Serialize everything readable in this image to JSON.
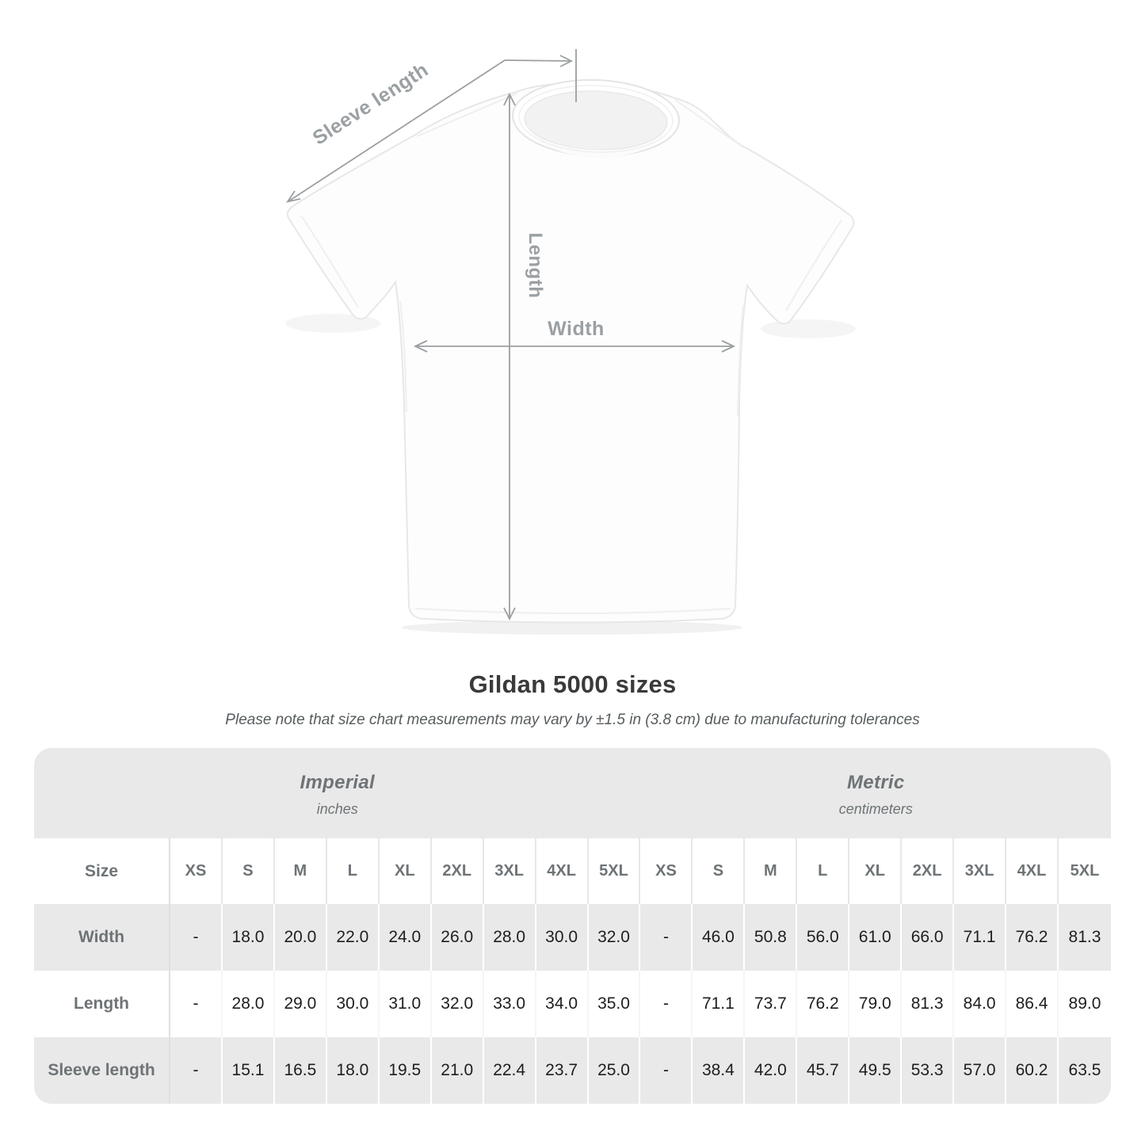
{
  "diagram": {
    "labels": {
      "sleeve_length": "Sleeve length",
      "length": "Length",
      "width": "Width"
    }
  },
  "title": "Gildan 5000 sizes",
  "note": "Please note that size chart measurements may vary by ±1.5 in (3.8 cm) due to manufacturing tolerances",
  "table": {
    "size_header": "Size",
    "sections": [
      {
        "label": "Imperial",
        "sublabel": "inches"
      },
      {
        "label": "Metric",
        "sublabel": "centimeters"
      }
    ],
    "sizes": [
      "XS",
      "S",
      "M",
      "L",
      "XL",
      "2XL",
      "3XL",
      "4XL",
      "5XL"
    ],
    "rows": [
      {
        "label": "Width",
        "imperial": [
          "-",
          "18.0",
          "20.0",
          "22.0",
          "24.0",
          "26.0",
          "28.0",
          "30.0",
          "32.0"
        ],
        "metric": [
          "-",
          "46.0",
          "50.8",
          "56.0",
          "61.0",
          "66.0",
          "71.1",
          "76.2",
          "81.3"
        ]
      },
      {
        "label": "Length",
        "imperial": [
          "-",
          "28.0",
          "29.0",
          "30.0",
          "31.0",
          "32.0",
          "33.0",
          "34.0",
          "35.0"
        ],
        "metric": [
          "-",
          "71.1",
          "73.7",
          "76.2",
          "79.0",
          "81.3",
          "84.0",
          "86.4",
          "89.0"
        ]
      },
      {
        "label": "Sleeve length",
        "imperial": [
          "-",
          "15.1",
          "16.5",
          "18.0",
          "19.5",
          "21.0",
          "22.4",
          "23.7",
          "25.0"
        ],
        "metric": [
          "-",
          "38.4",
          "42.0",
          "45.7",
          "49.5",
          "53.3",
          "57.0",
          "60.2",
          "63.5"
        ]
      }
    ]
  },
  "colors": {
    "band_gray": "#e9e9e9",
    "header_text": "#6e7376",
    "value_text": "#1e1e1e",
    "arrow_gray": "#9b9fa1",
    "title_text": "#3a3a3a"
  },
  "chart_data": {
    "type": "table",
    "title": "Gildan 5000 sizes",
    "note": "Please note that size chart measurements may vary by ±1.5 in (3.8 cm) due to manufacturing tolerances",
    "unit_systems": [
      {
        "name": "Imperial",
        "unit": "inches"
      },
      {
        "name": "Metric",
        "unit": "centimeters"
      }
    ],
    "columns": [
      "XS",
      "S",
      "M",
      "L",
      "XL",
      "2XL",
      "3XL",
      "4XL",
      "5XL"
    ],
    "rows": [
      {
        "measurement": "Width",
        "imperial_inches": [
          null,
          18.0,
          20.0,
          22.0,
          24.0,
          26.0,
          28.0,
          30.0,
          32.0
        ],
        "metric_cm": [
          null,
          46.0,
          50.8,
          56.0,
          61.0,
          66.0,
          71.1,
          76.2,
          81.3
        ]
      },
      {
        "measurement": "Length",
        "imperial_inches": [
          null,
          28.0,
          29.0,
          30.0,
          31.0,
          32.0,
          33.0,
          34.0,
          35.0
        ],
        "metric_cm": [
          null,
          71.1,
          73.7,
          76.2,
          79.0,
          81.3,
          84.0,
          86.4,
          89.0
        ]
      },
      {
        "measurement": "Sleeve length",
        "imperial_inches": [
          null,
          15.1,
          16.5,
          18.0,
          19.5,
          21.0,
          22.4,
          23.7,
          25.0
        ],
        "metric_cm": [
          null,
          38.4,
          42.0,
          45.7,
          49.5,
          53.3,
          57.0,
          60.2,
          63.5
        ]
      }
    ]
  }
}
